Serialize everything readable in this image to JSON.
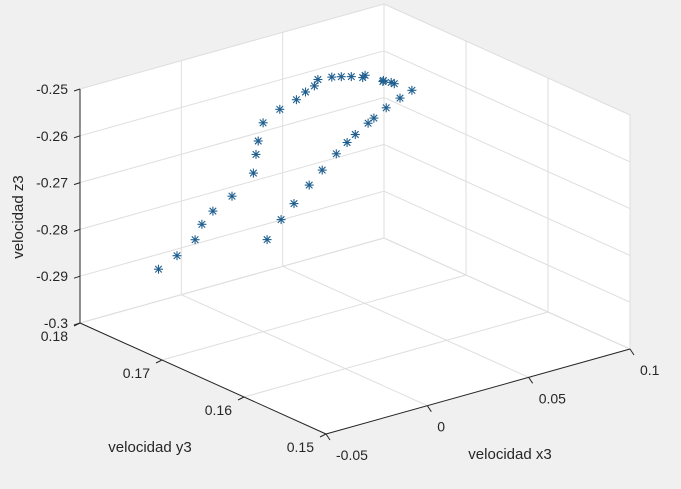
{
  "chart_data": {
    "type": "scatter",
    "marker": "*",
    "colors": {
      "marker": "#1f5f8f",
      "background": "#f0f0f0",
      "axes_face": "#ffffff",
      "grid": "#dedede",
      "axis_line": "#262626"
    },
    "grid": true,
    "xlabel": "velocidad x3",
    "ylabel": "velocidad y3",
    "zlabel": "velocidad z3",
    "xlim": [
      -0.05,
      0.1
    ],
    "ylim": [
      0.15,
      0.18
    ],
    "zlim": [
      -0.3,
      -0.25
    ],
    "xticks": [
      -0.05,
      0,
      0.05,
      0.1
    ],
    "xtick_labels": [
      "-0.05",
      "0",
      "0.05",
      "0.1"
    ],
    "yticks": [
      0.15,
      0.16,
      0.17,
      0.18
    ],
    "ytick_labels": [
      "0.15",
      "0.16",
      "0.17",
      "0.18"
    ],
    "zticks": [
      -0.3,
      -0.29,
      -0.28,
      -0.27,
      -0.26,
      -0.25
    ],
    "ztick_labels": [
      "-0.3",
      "-0.29",
      "-0.28",
      "-0.27",
      "-0.26",
      "-0.25"
    ],
    "points_xyz": [
      [
        -0.0293,
        0.1623,
        -0.2707
      ],
      [
        -0.0216,
        0.1625,
        -0.2675
      ],
      [
        -0.0148,
        0.1626,
        -0.265
      ],
      [
        -0.0065,
        0.1628,
        -0.2622
      ],
      [
        0.0003,
        0.1629,
        -0.2599
      ],
      [
        0.0077,
        0.163,
        -0.2574
      ],
      [
        0.0142,
        0.1633,
        -0.256
      ],
      [
        0.0199,
        0.1637,
        -0.2553
      ],
      [
        0.027,
        0.1639,
        -0.2539
      ],
      [
        0.0319,
        0.1644,
        -0.2538
      ],
      [
        0.0388,
        0.1646,
        -0.2526
      ],
      [
        0.0464,
        0.1648,
        -0.2516
      ],
      [
        0.0531,
        0.165,
        -0.2509
      ],
      [
        0.0525,
        0.167,
        -0.251
      ],
      [
        0.0562,
        0.1683,
        -0.2522
      ],
      [
        0.059,
        0.17,
        -0.2537
      ],
      [
        0.0637,
        0.1711,
        -0.2549
      ],
      [
        0.0628,
        0.1734,
        -0.256
      ],
      [
        0.0676,
        0.1743,
        -0.2568
      ],
      [
        0.0685,
        0.1762,
        -0.2587
      ],
      [
        0.0692,
        0.1776,
        -0.2599
      ],
      [
        0.0698,
        0.1789,
        -0.2611
      ],
      [
        0.069,
        0.1804,
        -0.2627
      ],
      [
        0.0709,
        0.1813,
        -0.265
      ],
      [
        0.071,
        0.1824,
        -0.2672
      ],
      [
        0.0697,
        0.1832,
        -0.2693
      ],
      [
        0.0664,
        0.1844,
        -0.2719
      ],
      [
        0.0626,
        0.1855,
        -0.2752
      ],
      [
        0.0602,
        0.1855,
        -0.2788
      ],
      [
        0.0587,
        0.1854,
        -0.2814
      ],
      [
        0.0582,
        0.1856,
        -0.2855
      ],
      [
        0.0525,
        0.1868,
        -0.2907
      ],
      [
        0.0455,
        0.1874,
        -0.2935
      ],
      [
        0.0405,
        0.1875,
        -0.2958
      ],
      [
        0.0359,
        0.1872,
        -0.2983
      ],
      [
        0.0278,
        0.1874,
        -0.3009
      ],
      [
        0.0207,
        0.1879,
        -0.3033
      ]
    ]
  }
}
